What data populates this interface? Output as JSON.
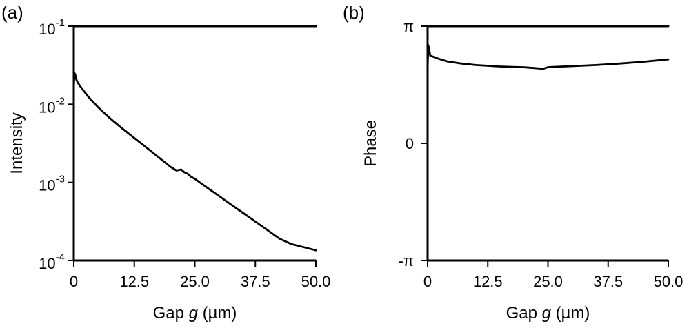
{
  "chart_data": [
    {
      "type": "line",
      "panel_label": "(a)",
      "xlabel_prefix": "Gap ",
      "xlabel_var": "g",
      "xlabel_suffix": " (µm)",
      "ylabel": "Intensity",
      "xlim": [
        0,
        50
      ],
      "ylim": [
        0.0001,
        0.1
      ],
      "yscale": "log",
      "x_ticks": [
        {
          "value": 0,
          "label": "0"
        },
        {
          "value": 12.5,
          "label": "12.5"
        },
        {
          "value": 25,
          "label": "25.0"
        },
        {
          "value": 37.5,
          "label": "37.5"
        },
        {
          "value": 50,
          "label": "50.0"
        }
      ],
      "y_ticks": [
        {
          "value": 0.1,
          "base": "10",
          "exp": "-1"
        },
        {
          "value": 0.01,
          "base": "10",
          "exp": "-2"
        },
        {
          "value": 0.001,
          "base": "10",
          "exp": "-3"
        },
        {
          "value": 0.0001,
          "base": "10",
          "exp": "-4"
        }
      ],
      "grid": false,
      "series": [
        {
          "color": "#000000",
          "x": [
            0,
            0.15,
            0.3,
            0.5,
            0.8,
            1.2,
            2,
            3,
            4,
            5,
            6,
            7.5,
            10,
            12.5,
            15,
            17.5,
            20,
            21.2,
            22.2,
            22.8,
            23.6,
            24.2,
            25,
            27.5,
            30,
            32.5,
            35,
            37.5,
            40,
            42.5,
            45,
            47.5,
            50
          ],
          "y": [
            0.017,
            0.025,
            0.024,
            0.021,
            0.019,
            0.0175,
            0.015,
            0.0125,
            0.0107,
            0.0092,
            0.008,
            0.0066,
            0.0049,
            0.0037,
            0.0028,
            0.0021,
            0.00158,
            0.00142,
            0.00146,
            0.00135,
            0.00128,
            0.00118,
            0.00111,
            0.00086,
            0.00067,
            0.00052,
            0.000405,
            0.000315,
            0.000245,
            0.00019,
            0.000162,
            0.000148,
            0.000135
          ]
        },
        {
          "color": "#000000",
          "x": [
            0,
            50
          ],
          "y": [
            0.1,
            0.1
          ]
        }
      ]
    },
    {
      "type": "line",
      "panel_label": "(b)",
      "xlabel_prefix": "Gap ",
      "xlabel_var": "g",
      "xlabel_suffix": " (µm)",
      "ylabel": "Phase",
      "xlim": [
        0,
        50
      ],
      "ylim": [
        -3.1416,
        3.1416
      ],
      "yscale": "linear",
      "x_ticks": [
        {
          "value": 0,
          "label": "0"
        },
        {
          "value": 12.5,
          "label": "12.5"
        },
        {
          "value": 25,
          "label": "25.0"
        },
        {
          "value": 37.5,
          "label": "37.5"
        },
        {
          "value": 50,
          "label": "50.0"
        }
      ],
      "y_ticks": [
        {
          "value": 3.1416,
          "label": "π"
        },
        {
          "value": 0,
          "label": "0"
        },
        {
          "value": -3.1416,
          "label": "-π"
        }
      ],
      "grid": false,
      "series": [
        {
          "color": "#000000",
          "x": [
            0,
            0.15,
            0.35,
            0.55,
            1,
            2,
            4,
            7,
            10,
            15,
            20,
            22,
            24,
            25,
            26,
            30,
            35,
            40,
            45,
            50
          ],
          "y": [
            2.03,
            2.63,
            2.5,
            2.35,
            2.33,
            2.28,
            2.2,
            2.14,
            2.1,
            2.06,
            2.04,
            2.02,
            2.0,
            2.04,
            2.05,
            2.07,
            2.1,
            2.14,
            2.19,
            2.25
          ]
        },
        {
          "color": "#000000",
          "x": [
            0,
            50
          ],
          "y": [
            3.1416,
            3.1416
          ]
        }
      ]
    }
  ]
}
